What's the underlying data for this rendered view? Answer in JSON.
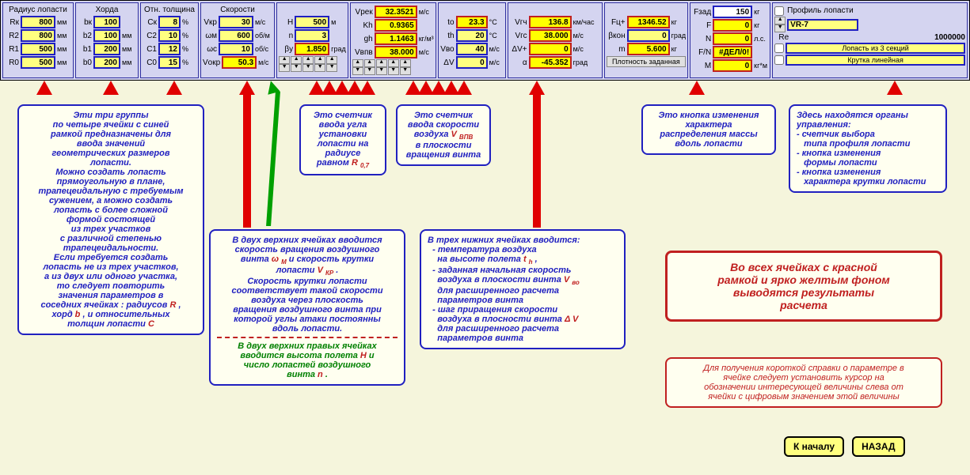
{
  "groups": {
    "radius": {
      "title": "Радиус лопасти",
      "rows": [
        {
          "lbl": "Rк",
          "val": "800",
          "unit": "мм"
        },
        {
          "lbl": "R2",
          "val": "800",
          "unit": "мм"
        },
        {
          "lbl": "R1",
          "val": "500",
          "unit": "мм"
        },
        {
          "lbl": "R0",
          "val": "500",
          "unit": "мм"
        }
      ]
    },
    "chord": {
      "title": "Хорда",
      "rows": [
        {
          "lbl": "bк",
          "val": "100"
        },
        {
          "lbl": "b2",
          "val": "100",
          "unit": "мм"
        },
        {
          "lbl": "b1",
          "val": "200",
          "unit": "мм"
        },
        {
          "lbl": "b0",
          "val": "200",
          "unit": "мм"
        }
      ]
    },
    "thickness": {
      "title": "Отн. толщина",
      "rows": [
        {
          "lbl": "Cк",
          "val": "8",
          "unit": "%"
        },
        {
          "lbl": "C2",
          "val": "10",
          "unit": "%"
        },
        {
          "lbl": "C1",
          "val": "12",
          "unit": "%"
        },
        {
          "lbl": "C0",
          "val": "15",
          "unit": "%"
        }
      ]
    },
    "speeds": {
      "title": "Скорости",
      "rows": [
        {
          "lbl": "Vкр",
          "val": "30",
          "unit": "м/с"
        },
        {
          "lbl": "ωм",
          "val": "600",
          "unit": "об/м"
        },
        {
          "lbl": "ωс",
          "val": "10",
          "unit": "об/с"
        },
        {
          "lbl": "Vокр",
          "val": "50.3",
          "unit": "м/с",
          "red": true
        }
      ]
    },
    "hn": {
      "rows": [
        {
          "lbl": "H",
          "val": "500",
          "unit": "м"
        },
        {
          "lbl": "n",
          "val": "3"
        },
        {
          "lbl": "βу",
          "val": "1.850",
          "unit": "град",
          "red": true
        }
      ]
    },
    "vrek": {
      "rows": [
        {
          "lbl": "Vрек",
          "val": "32.3521",
          "unit": "м/с",
          "red": true
        },
        {
          "lbl": "Kh",
          "val": "0.9365",
          "red": true
        },
        {
          "lbl": "gh",
          "val": "1.1463",
          "unit": "кг/м³",
          "red": true
        },
        {
          "lbl": "Vвпв",
          "val": "38.000",
          "unit": "м/с",
          "red": true
        }
      ]
    },
    "temp": {
      "rows": [
        {
          "lbl": "to",
          "val": "23.3",
          "unit": "°C",
          "red": true
        },
        {
          "lbl": "th",
          "val": "20",
          "unit": "°C"
        },
        {
          "lbl": "Vво",
          "val": "40",
          "unit": "м/с"
        },
        {
          "lbl": "ΔV",
          "val": "0",
          "unit": "м/с"
        }
      ]
    },
    "vgch": {
      "rows": [
        {
          "lbl": "Vгч",
          "val": "136.8",
          "unit": "км/час",
          "red": true
        },
        {
          "lbl": "Vгс",
          "val": "38.000",
          "unit": "м/с",
          "red": true
        },
        {
          "lbl": "ΔV+",
          "val": "0",
          "unit": "м/с",
          "red": true
        },
        {
          "lbl": "α",
          "val": "-45.352",
          "unit": "град",
          "red": true
        }
      ]
    },
    "mass": {
      "rows": [
        {
          "lbl": "Fц+",
          "val": "1346.52",
          "unit": "кг",
          "red": true
        },
        {
          "lbl": "βкон",
          "val": "0",
          "unit": "град"
        },
        {
          "lbl": "m",
          "val": "5.600",
          "unit": "кг",
          "red": true
        }
      ],
      "density_btn": "Плотность  заданная"
    },
    "fzad": {
      "rows": [
        {
          "lbl": "Fзад",
          "val": "150",
          "unit": "кг"
        },
        {
          "lbl": "F",
          "val": "0",
          "unit": "кг",
          "red": true
        },
        {
          "lbl": "N",
          "val": "0",
          "unit": "л.с.",
          "red": true
        },
        {
          "lbl": "F/N",
          "val": "#ДЕЛ/0!",
          "red": true
        },
        {
          "lbl": "M",
          "val": "0",
          "unit": "кг*м",
          "red": true
        }
      ]
    },
    "profile": {
      "title": "Профиль лопасти",
      "select": "VR-7",
      "re_lbl": "Re",
      "re_val": "1000000",
      "blade_lbl": "Лопасть из   3 секций",
      "twist_lbl": "Крутка     линейная"
    }
  },
  "callouts": {
    "c1": "Эти три группы\nпо четыре ячейки с синей\nрамкой предназначены для\nввода значений\nгеометрических размеров\nлопасти.\nМожно создать лопасть\nпрямоугольную в плане,\nтрапецеидальную с требуемым\nсужением, а можно создать\nлопасть с более сложной\nформой состоящей\nиз трех участков\nс различной степенью\nтрапецеидальности.\nЕсли требуется создать\nлопасть не из трех участков,\nа из двух или одного участка,\nто следует  повторить\nзначения параметров в\nсоседних ячейках : радиусов R ,\nхорд b , и относительных\nтолщин лопасти  С",
    "c2": "Это счетчик\nввода угла\nустановки\nлопасти на\nрадиусе\nравном R 0,7",
    "c3": "Это счетчик\nввода скорости\nвоздуха V ВПВ\nв плоскости\nвращения винта",
    "c4": "Это кнопка изменения\nхарактера\nраспределения массы\nвдоль лопасти",
    "c5": "Здесь находятся органы\nуправления:\n- счетчик выбора\n   типа профиля лопасти\n- кнопка изменения\n   формы лопасти\n- кнопка изменения\n   характера крутки лопасти",
    "c6a": "В двух верхних ячейках вводится\nскорость вращения воздушного\nвинта ω м  и скорость крутки\nлопасти   V КР .\nСкорость крутки лопасти\nсоответствует такой скорости\nвоздуха через плоскость\nвращения воздушного винта при\nкоторой углы атаки постоянны\nвдоль лопасти.",
    "c6b": "В двух верхних правых ячейках\nвводится высота полета H и\nчисло лопастей воздушного\nвинта n .",
    "c7": "В трех  нижних ячейках вводится:\n  - температура воздуха\n    на высоте полета t h ,\n  - заданная начальная скорость\n    воздуха в плоскости винта V во\n    для расширенного расчета\n    параметров винта\n  - шаг приращения скорости\n    воздуха в плосности винта Δ V\n    для расширенного расчета\n    параметров винта",
    "result": "Во всех ячейках с красной\nрамкой и ярко желтым фоном\nвыводятся результаты\nрасчета",
    "hint": "Для получения короткой справки о параметре в\nячейке следует установить курсор на\nобозначении интересующей величины слева от\nячейки с цифровым значением этой величины"
  },
  "nav": {
    "start": "К началу",
    "back": "НАЗАД"
  }
}
